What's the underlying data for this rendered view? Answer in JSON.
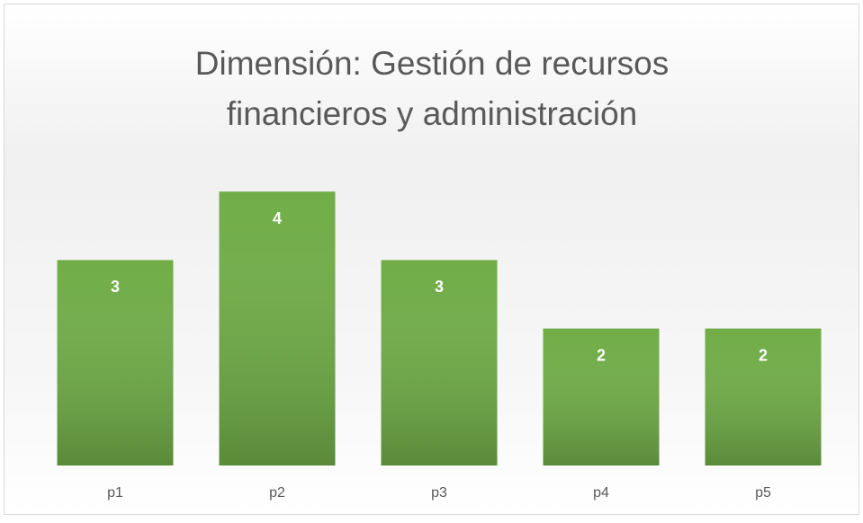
{
  "chart_data": {
    "type": "bar",
    "title": [
      "Dimensión: Gestión de recursos",
      "financieros y administración"
    ],
    "categories": [
      "p1",
      "p2",
      "p3",
      "p4",
      "p5"
    ],
    "values": [
      3,
      4,
      3,
      2,
      2
    ],
    "color": "#70ad47",
    "ylim": [
      0,
      5
    ]
  }
}
